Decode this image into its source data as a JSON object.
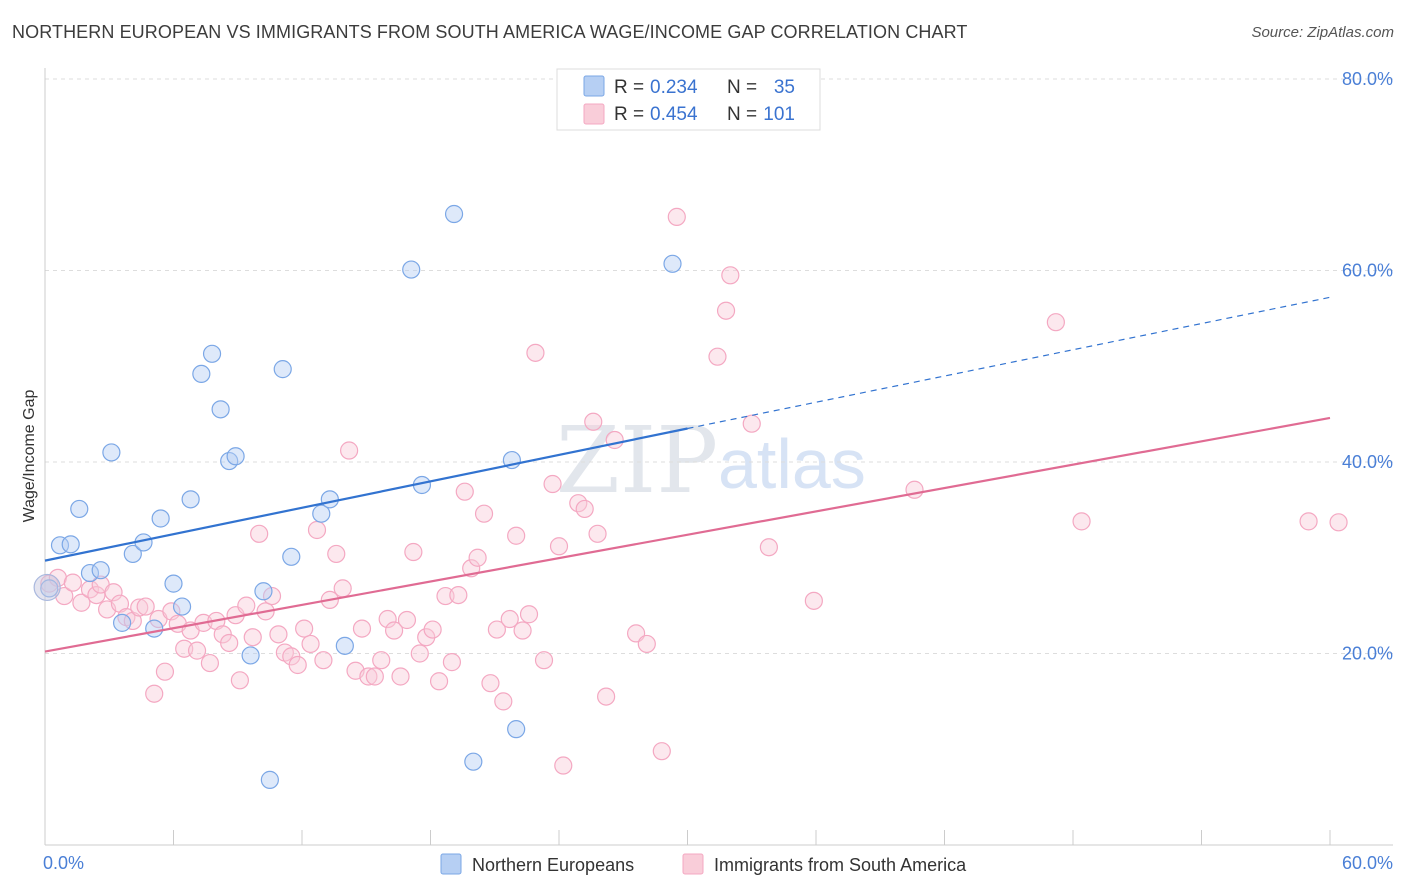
{
  "header": {
    "title": "NORTHERN EUROPEAN VS IMMIGRANTS FROM SOUTH AMERICA WAGE/INCOME GAP CORRELATION CHART",
    "source": "Source: ZipAtlas.com"
  },
  "watermark": {
    "zip": "ZIP",
    "atlas": "atlas"
  },
  "legend_box": {
    "rows": [
      {
        "r_label": "R =",
        "r_value": "0.234",
        "n_label": "N =",
        "n_value": "35"
      },
      {
        "r_label": "R =",
        "r_value": "0.454",
        "n_label": "N =",
        "n_value": "101"
      }
    ]
  },
  "chart_data": {
    "type": "scatter",
    "title": "NORTHERN EUROPEAN VS IMMIGRANTS FROM SOUTH AMERICA WAGE/INCOME GAP CORRELATION CHART",
    "xlabel": "",
    "ylabel": "Wage/Income Gap",
    "xlim": [
      0,
      60
    ],
    "ylim": [
      0,
      80
    ],
    "x_ticks": [
      "0.0%",
      "60.0%"
    ],
    "y_ticks": [
      {
        "value": 20,
        "label": "20.0%"
      },
      {
        "value": 40,
        "label": "40.0%"
      },
      {
        "value": 60,
        "label": "60.0%"
      },
      {
        "value": 80,
        "label": "80.0%"
      }
    ],
    "grid": true,
    "legend_position": "bottom",
    "series": [
      {
        "name": "Northern Europeans",
        "color": "#7ba7e6",
        "line_color": "#3273d0",
        "r": 0.234,
        "n": 35,
        "trend": {
          "x0": 0,
          "y0": 29.7,
          "x1": 30,
          "y1": 43.5,
          "dashed_to_x": 60,
          "dashed_to_y": 57.2
        },
        "points": [
          [
            0.2,
            26.8
          ],
          [
            0.7,
            31.3
          ],
          [
            1.2,
            31.4
          ],
          [
            1.6,
            35.1
          ],
          [
            2.1,
            28.4
          ],
          [
            2.6,
            28.7
          ],
          [
            3.1,
            41.0
          ],
          [
            3.6,
            23.2
          ],
          [
            4.1,
            30.4
          ],
          [
            4.6,
            31.6
          ],
          [
            5.1,
            22.6
          ],
          [
            5.4,
            34.1
          ],
          [
            6.0,
            27.3
          ],
          [
            6.4,
            24.9
          ],
          [
            6.8,
            36.1
          ],
          [
            7.3,
            49.2
          ],
          [
            7.8,
            51.3
          ],
          [
            8.2,
            45.5
          ],
          [
            8.6,
            40.1
          ],
          [
            8.9,
            40.6
          ],
          [
            9.6,
            19.8
          ],
          [
            10.2,
            26.5
          ],
          [
            10.5,
            6.8
          ],
          [
            11.1,
            49.7
          ],
          [
            11.5,
            30.1
          ],
          [
            12.9,
            34.6
          ],
          [
            13.3,
            36.1
          ],
          [
            14.0,
            20.8
          ],
          [
            17.1,
            60.1
          ],
          [
            17.6,
            37.6
          ],
          [
            19.1,
            65.9
          ],
          [
            20.0,
            8.7
          ],
          [
            21.8,
            40.2
          ],
          [
            22.0,
            12.1
          ],
          [
            29.3,
            60.7
          ]
        ]
      },
      {
        "name": "Immigrants from South America",
        "color": "#f4a8c2",
        "line_color": "#e06b93",
        "r": 0.454,
        "n": 101,
        "trend": {
          "x0": 0,
          "y0": 20.2,
          "x1": 60,
          "y1": 44.6
        },
        "points": [
          [
            0.2,
            27.3
          ],
          [
            0.6,
            27.9
          ],
          [
            0.9,
            26.0
          ],
          [
            1.3,
            27.4
          ],
          [
            1.7,
            25.3
          ],
          [
            2.1,
            26.7
          ],
          [
            2.4,
            26.1
          ],
          [
            2.6,
            27.2
          ],
          [
            2.9,
            24.6
          ],
          [
            3.2,
            26.4
          ],
          [
            3.5,
            25.2
          ],
          [
            3.8,
            23.8
          ],
          [
            4.1,
            23.4
          ],
          [
            4.4,
            24.8
          ],
          [
            4.7,
            24.9
          ],
          [
            5.1,
            15.8
          ],
          [
            5.3,
            23.6
          ],
          [
            5.6,
            18.1
          ],
          [
            5.9,
            24.4
          ],
          [
            6.2,
            23.1
          ],
          [
            6.5,
            20.5
          ],
          [
            6.8,
            22.4
          ],
          [
            7.1,
            20.3
          ],
          [
            7.4,
            23.2
          ],
          [
            7.7,
            19.0
          ],
          [
            8.0,
            23.4
          ],
          [
            8.3,
            22.0
          ],
          [
            8.6,
            21.1
          ],
          [
            8.9,
            24.0
          ],
          [
            9.1,
            17.2
          ],
          [
            9.4,
            25.0
          ],
          [
            9.7,
            21.7
          ],
          [
            10.0,
            32.5
          ],
          [
            10.3,
            24.4
          ],
          [
            10.6,
            26.0
          ],
          [
            10.9,
            22.0
          ],
          [
            11.2,
            20.1
          ],
          [
            11.5,
            19.7
          ],
          [
            11.8,
            18.8
          ],
          [
            12.1,
            22.6
          ],
          [
            12.4,
            21.0
          ],
          [
            12.7,
            32.9
          ],
          [
            13.0,
            19.3
          ],
          [
            13.3,
            25.6
          ],
          [
            13.6,
            30.4
          ],
          [
            13.9,
            26.8
          ],
          [
            14.2,
            41.2
          ],
          [
            14.5,
            18.2
          ],
          [
            14.8,
            22.6
          ],
          [
            15.1,
            17.6
          ],
          [
            15.4,
            17.6
          ],
          [
            15.7,
            19.3
          ],
          [
            16.0,
            23.6
          ],
          [
            16.3,
            22.4
          ],
          [
            16.6,
            17.6
          ],
          [
            16.9,
            23.5
          ],
          [
            17.2,
            30.6
          ],
          [
            17.5,
            20.0
          ],
          [
            17.8,
            21.7
          ],
          [
            18.1,
            22.5
          ],
          [
            18.4,
            17.1
          ],
          [
            18.7,
            26.0
          ],
          [
            19.0,
            19.1
          ],
          [
            19.3,
            26.1
          ],
          [
            19.6,
            36.9
          ],
          [
            19.9,
            28.9
          ],
          [
            20.2,
            30.0
          ],
          [
            20.5,
            34.6
          ],
          [
            20.8,
            16.9
          ],
          [
            21.1,
            22.5
          ],
          [
            21.4,
            15.0
          ],
          [
            21.7,
            23.6
          ],
          [
            22.0,
            32.3
          ],
          [
            22.3,
            22.4
          ],
          [
            22.6,
            24.1
          ],
          [
            22.9,
            51.4
          ],
          [
            23.3,
            19.3
          ],
          [
            23.7,
            37.7
          ],
          [
            24.0,
            31.2
          ],
          [
            24.2,
            8.3
          ],
          [
            24.9,
            35.7
          ],
          [
            25.2,
            35.1
          ],
          [
            25.6,
            44.2
          ],
          [
            25.8,
            32.5
          ],
          [
            26.2,
            15.5
          ],
          [
            26.6,
            42.3
          ],
          [
            27.6,
            22.1
          ],
          [
            28.1,
            21.0
          ],
          [
            28.8,
            9.8
          ],
          [
            29.5,
            65.6
          ],
          [
            31.4,
            51.0
          ],
          [
            31.8,
            55.8
          ],
          [
            32.0,
            59.5
          ],
          [
            33.0,
            44.0
          ],
          [
            33.8,
            31.1
          ],
          [
            35.9,
            25.5
          ],
          [
            40.6,
            37.1
          ],
          [
            47.2,
            54.6
          ],
          [
            48.4,
            33.8
          ],
          [
            59.0,
            33.8
          ],
          [
            60.4,
            33.7
          ]
        ]
      }
    ]
  },
  "bottom_legend": {
    "items": [
      {
        "label": "Northern Europeans",
        "color": "#b6cff3",
        "stroke": "#7ba7e6"
      },
      {
        "label": "Immigrants from South America",
        "color": "#f9cdd9",
        "stroke": "#f4a8c2"
      }
    ]
  }
}
